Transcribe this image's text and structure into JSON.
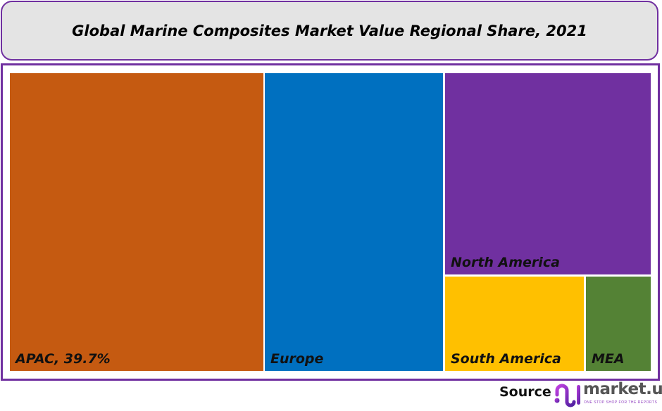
{
  "chart_data": {
    "type": "treemap",
    "title": "Global Marine Composites Market Value Regional Share, 2021",
    "unit": "%",
    "items": [
      {
        "label": "APAC, 39.7%",
        "name": "APAC",
        "value": 39.7,
        "color": "#c55a11"
      },
      {
        "label": "Europe",
        "name": "Europe",
        "value": 27.8,
        "color": "#0070c0"
      },
      {
        "label": "North America",
        "name": "North America",
        "value": 21.9,
        "color": "#7030a0"
      },
      {
        "label": "South America",
        "name": "South America",
        "value": 7.0,
        "color": "#ffc000"
      },
      {
        "label": "MEA",
        "name": "MEA",
        "value": 3.3,
        "color": "#548235"
      }
    ]
  },
  "footer": {
    "source_label": "Source",
    "logo_text": "market.us",
    "logo_tagline": "ONE STOP SHOP FOR THE REPORTS"
  },
  "colors": {
    "frame": "#7030a0",
    "title_bg": "#e4e4e4"
  }
}
